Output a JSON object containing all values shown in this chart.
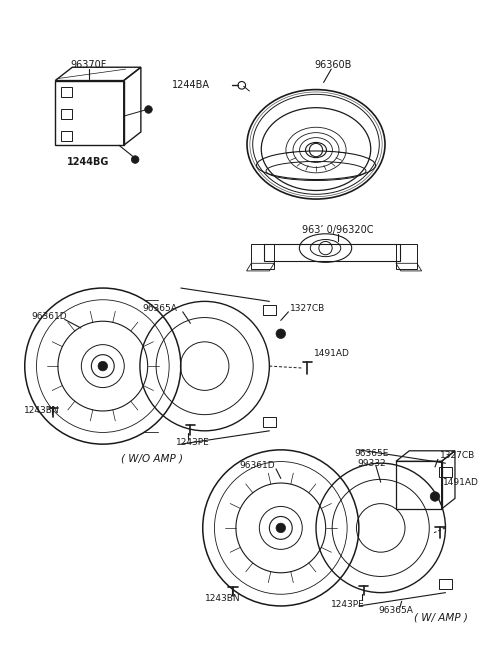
{
  "bg_color": "#ffffff",
  "line_color": "#1a1a1a",
  "text_color": "#1a1a1a",
  "labels": {
    "amp_box": "96370F",
    "amp_box_sub": "1244BG",
    "bolt_label": "1244BA",
    "large_spk": "96360B",
    "small_spk": "963’ 0/96320C",
    "wo_spk": "96361D",
    "wo_bracket": "96365A",
    "wo_screw": "1327CB",
    "wo_bolt": "1491AD",
    "wo_boltbn": "1243BN",
    "wo_boltpe": "1243PE",
    "wo_group": "( W/O AMP )",
    "w_spk": "96361D",
    "w_bracket": "96365A",
    "w_amp": "96365E",
    "w_amp2": "99332",
    "w_screw": "1327CB",
    "w_bolt": "1491AD",
    "w_boltbn": "1243BN",
    "w_boltpe": "1243PE",
    "w_group": "( W/ AMP )"
  }
}
